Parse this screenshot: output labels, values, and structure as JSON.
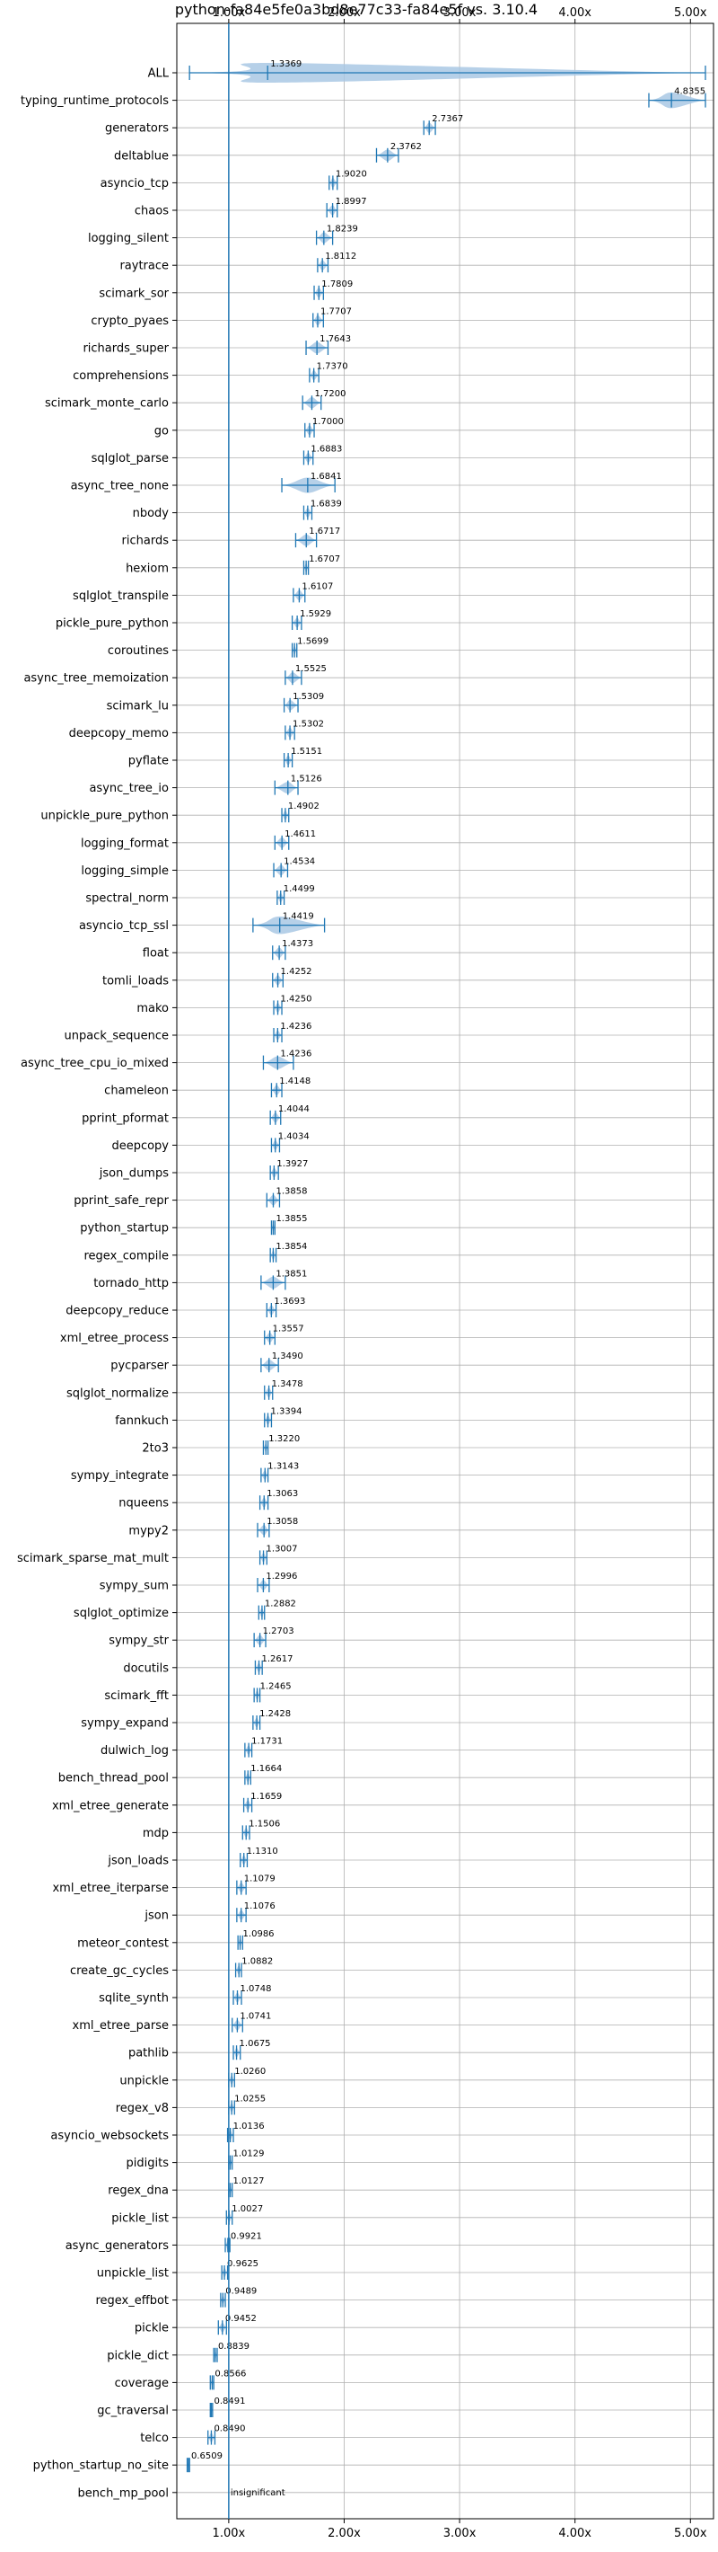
{
  "chart_data": {
    "type": "violin",
    "title": "python-fa84e5fe0a3bd8e77c33-fa84e5f vs. 3.10.4",
    "xlabel": "",
    "ylabel": "",
    "xlim": [
      0.55,
      5.2
    ],
    "x_ticks": [
      1.0,
      2.0,
      3.0,
      4.0,
      5.0
    ],
    "x_tick_labels": [
      "1.00x",
      "2.00x",
      "3.00x",
      "4.00x",
      "5.00x"
    ],
    "ticks_top_and_bottom": true,
    "grid": true,
    "reference_line": 1.0,
    "colors": {
      "violin": "#a9c8e4",
      "marker": "#1f77b4",
      "axis": "#000000",
      "grid": "#b0b0b0"
    },
    "benchmarks": [
      {
        "name": "ALL",
        "value": 1.3369,
        "label": "1.3369",
        "low": 0.66,
        "high": 5.13
      },
      {
        "name": "typing_runtime_protocols",
        "value": 4.8355,
        "label": "4.8355",
        "low": 4.64,
        "high": 5.13
      },
      {
        "name": "generators",
        "value": 2.7367,
        "label": "2.7367",
        "low": 2.69,
        "high": 2.79
      },
      {
        "name": "deltablue",
        "value": 2.3762,
        "label": "2.3762",
        "low": 2.28,
        "high": 2.47
      },
      {
        "name": "asyncio_tcp",
        "value": 1.902,
        "label": "1.9020",
        "low": 1.87,
        "high": 1.94
      },
      {
        "name": "chaos",
        "value": 1.8997,
        "label": "1.8997",
        "low": 1.85,
        "high": 1.94
      },
      {
        "name": "logging_silent",
        "value": 1.8239,
        "label": "1.8239",
        "low": 1.76,
        "high": 1.9
      },
      {
        "name": "raytrace",
        "value": 1.8112,
        "label": "1.8112",
        "low": 1.77,
        "high": 1.86
      },
      {
        "name": "scimark_sor",
        "value": 1.7809,
        "label": "1.7809",
        "low": 1.74,
        "high": 1.82
      },
      {
        "name": "crypto_pyaes",
        "value": 1.7707,
        "label": "1.7707",
        "low": 1.73,
        "high": 1.82
      },
      {
        "name": "richards_super",
        "value": 1.7643,
        "label": "1.7643",
        "low": 1.67,
        "high": 1.86
      },
      {
        "name": "comprehensions",
        "value": 1.737,
        "label": "1.7370",
        "low": 1.7,
        "high": 1.78
      },
      {
        "name": "scimark_monte_carlo",
        "value": 1.72,
        "label": "1.7200",
        "low": 1.64,
        "high": 1.8
      },
      {
        "name": "go",
        "value": 1.7,
        "label": "1.7000",
        "low": 1.66,
        "high": 1.74
      },
      {
        "name": "sqlglot_parse",
        "value": 1.6883,
        "label": "1.6883",
        "low": 1.65,
        "high": 1.73
      },
      {
        "name": "async_tree_none",
        "value": 1.6841,
        "label": "1.6841",
        "low": 1.46,
        "high": 1.92
      },
      {
        "name": "nbody",
        "value": 1.6839,
        "label": "1.6839",
        "low": 1.65,
        "high": 1.72
      },
      {
        "name": "richards",
        "value": 1.6717,
        "label": "1.6717",
        "low": 1.58,
        "high": 1.76
      },
      {
        "name": "hexiom",
        "value": 1.6707,
        "label": "1.6707",
        "low": 1.65,
        "high": 1.69
      },
      {
        "name": "sqlglot_transpile",
        "value": 1.6107,
        "label": "1.6107",
        "low": 1.56,
        "high": 1.66
      },
      {
        "name": "pickle_pure_python",
        "value": 1.5929,
        "label": "1.5929",
        "low": 1.55,
        "high": 1.63
      },
      {
        "name": "coroutines",
        "value": 1.5699,
        "label": "1.5699",
        "low": 1.55,
        "high": 1.59
      },
      {
        "name": "async_tree_memoization",
        "value": 1.5525,
        "label": "1.5525",
        "low": 1.49,
        "high": 1.63
      },
      {
        "name": "scimark_lu",
        "value": 1.5309,
        "label": "1.5309",
        "low": 1.48,
        "high": 1.6
      },
      {
        "name": "deepcopy_memo",
        "value": 1.5302,
        "label": "1.5302",
        "low": 1.49,
        "high": 1.57
      },
      {
        "name": "pyflate",
        "value": 1.5151,
        "label": "1.5151",
        "low": 1.48,
        "high": 1.55
      },
      {
        "name": "async_tree_io",
        "value": 1.5126,
        "label": "1.5126",
        "low": 1.4,
        "high": 1.6
      },
      {
        "name": "unpickle_pure_python",
        "value": 1.4902,
        "label": "1.4902",
        "low": 1.46,
        "high": 1.52
      },
      {
        "name": "logging_format",
        "value": 1.4611,
        "label": "1.4611",
        "low": 1.4,
        "high": 1.52
      },
      {
        "name": "logging_simple",
        "value": 1.4534,
        "label": "1.4534",
        "low": 1.39,
        "high": 1.51
      },
      {
        "name": "spectral_norm",
        "value": 1.4499,
        "label": "1.4499",
        "low": 1.42,
        "high": 1.48
      },
      {
        "name": "asyncio_tcp_ssl",
        "value": 1.4419,
        "label": "1.4419",
        "low": 1.21,
        "high": 1.83
      },
      {
        "name": "float",
        "value": 1.4373,
        "label": "1.4373",
        "low": 1.38,
        "high": 1.49
      },
      {
        "name": "tomli_loads",
        "value": 1.4252,
        "label": "1.4252",
        "low": 1.38,
        "high": 1.47
      },
      {
        "name": "mako",
        "value": 1.425,
        "label": "1.4250",
        "low": 1.39,
        "high": 1.46
      },
      {
        "name": "unpack_sequence",
        "value": 1.4236,
        "label": "1.4236",
        "low": 1.39,
        "high": 1.46
      },
      {
        "name": "async_tree_cpu_io_mixed",
        "value": 1.4236,
        "label": "1.4236",
        "low": 1.3,
        "high": 1.56
      },
      {
        "name": "chameleon",
        "value": 1.4148,
        "label": "1.4148",
        "low": 1.37,
        "high": 1.46
      },
      {
        "name": "pprint_pformat",
        "value": 1.4044,
        "label": "1.4044",
        "low": 1.36,
        "high": 1.45
      },
      {
        "name": "deepcopy",
        "value": 1.4034,
        "label": "1.4034",
        "low": 1.37,
        "high": 1.44
      },
      {
        "name": "json_dumps",
        "value": 1.3927,
        "label": "1.3927",
        "low": 1.36,
        "high": 1.43
      },
      {
        "name": "pprint_safe_repr",
        "value": 1.3858,
        "label": "1.3858",
        "low": 1.33,
        "high": 1.44
      },
      {
        "name": "python_startup",
        "value": 1.3855,
        "label": "1.3855",
        "low": 1.37,
        "high": 1.4
      },
      {
        "name": "regex_compile",
        "value": 1.3854,
        "label": "1.3854",
        "low": 1.36,
        "high": 1.41
      },
      {
        "name": "tornado_http",
        "value": 1.3851,
        "label": "1.3851",
        "low": 1.28,
        "high": 1.49
      },
      {
        "name": "deepcopy_reduce",
        "value": 1.3693,
        "label": "1.3693",
        "low": 1.33,
        "high": 1.41
      },
      {
        "name": "xml_etree_process",
        "value": 1.3557,
        "label": "1.3557",
        "low": 1.31,
        "high": 1.4
      },
      {
        "name": "pycparser",
        "value": 1.349,
        "label": "1.3490",
        "low": 1.28,
        "high": 1.43
      },
      {
        "name": "sqlglot_normalize",
        "value": 1.3478,
        "label": "1.3478",
        "low": 1.31,
        "high": 1.38
      },
      {
        "name": "fannkuch",
        "value": 1.3394,
        "label": "1.3394",
        "low": 1.31,
        "high": 1.37
      },
      {
        "name": "2to3",
        "value": 1.322,
        "label": "1.3220",
        "low": 1.3,
        "high": 1.34
      },
      {
        "name": "sympy_integrate",
        "value": 1.3143,
        "label": "1.3143",
        "low": 1.28,
        "high": 1.34
      },
      {
        "name": "nqueens",
        "value": 1.3063,
        "label": "1.3063",
        "low": 1.27,
        "high": 1.34
      },
      {
        "name": "mypy2",
        "value": 1.3058,
        "label": "1.3058",
        "low": 1.25,
        "high": 1.35
      },
      {
        "name": "scimark_sparse_mat_mult",
        "value": 1.3007,
        "label": "1.3007",
        "low": 1.27,
        "high": 1.33
      },
      {
        "name": "sympy_sum",
        "value": 1.2996,
        "label": "1.2996",
        "low": 1.25,
        "high": 1.35
      },
      {
        "name": "sqlglot_optimize",
        "value": 1.2882,
        "label": "1.2882",
        "low": 1.26,
        "high": 1.31
      },
      {
        "name": "sympy_str",
        "value": 1.2703,
        "label": "1.2703",
        "low": 1.22,
        "high": 1.32
      },
      {
        "name": "docutils",
        "value": 1.2617,
        "label": "1.2617",
        "low": 1.23,
        "high": 1.29
      },
      {
        "name": "scimark_fft",
        "value": 1.2465,
        "label": "1.2465",
        "low": 1.22,
        "high": 1.27
      },
      {
        "name": "sympy_expand",
        "value": 1.2428,
        "label": "1.2428",
        "low": 1.21,
        "high": 1.27
      },
      {
        "name": "dulwich_log",
        "value": 1.1731,
        "label": "1.1731",
        "low": 1.14,
        "high": 1.2
      },
      {
        "name": "bench_thread_pool",
        "value": 1.1664,
        "label": "1.1664",
        "low": 1.14,
        "high": 1.19
      },
      {
        "name": "xml_etree_generate",
        "value": 1.1659,
        "label": "1.1659",
        "low": 1.13,
        "high": 1.2
      },
      {
        "name": "mdp",
        "value": 1.1506,
        "label": "1.1506",
        "low": 1.12,
        "high": 1.18
      },
      {
        "name": "json_loads",
        "value": 1.131,
        "label": "1.1310",
        "low": 1.1,
        "high": 1.16
      },
      {
        "name": "xml_etree_iterparse",
        "value": 1.1079,
        "label": "1.1079",
        "low": 1.07,
        "high": 1.15
      },
      {
        "name": "json",
        "value": 1.1076,
        "label": "1.1076",
        "low": 1.07,
        "high": 1.15
      },
      {
        "name": "meteor_contest",
        "value": 1.0986,
        "label": "1.0986",
        "low": 1.08,
        "high": 1.12
      },
      {
        "name": "create_gc_cycles",
        "value": 1.0882,
        "label": "1.0882",
        "low": 1.06,
        "high": 1.11
      },
      {
        "name": "sqlite_synth",
        "value": 1.0748,
        "label": "1.0748",
        "low": 1.04,
        "high": 1.11
      },
      {
        "name": "xml_etree_parse",
        "value": 1.0741,
        "label": "1.0741",
        "low": 1.03,
        "high": 1.12
      },
      {
        "name": "pathlib",
        "value": 1.0675,
        "label": "1.0675",
        "low": 1.04,
        "high": 1.1
      },
      {
        "name": "unpickle",
        "value": 1.026,
        "label": "1.0260",
        "low": 1.0,
        "high": 1.05
      },
      {
        "name": "regex_v8",
        "value": 1.0255,
        "label": "1.0255",
        "low": 1.0,
        "high": 1.05
      },
      {
        "name": "asyncio_websockets",
        "value": 1.0136,
        "label": "1.0136",
        "low": 0.99,
        "high": 1.04
      },
      {
        "name": "pidigits",
        "value": 1.0129,
        "label": "1.0129",
        "low": 1.0,
        "high": 1.03
      },
      {
        "name": "regex_dna",
        "value": 1.0127,
        "label": "1.0127",
        "low": 1.0,
        "high": 1.03
      },
      {
        "name": "pickle_list",
        "value": 1.0027,
        "label": "1.0027",
        "low": 0.98,
        "high": 1.03
      },
      {
        "name": "async_generators",
        "value": 0.9921,
        "label": "0.9921",
        "low": 0.97,
        "high": 1.01
      },
      {
        "name": "unpickle_list",
        "value": 0.9625,
        "label": "0.9625",
        "low": 0.94,
        "high": 0.99
      },
      {
        "name": "regex_effbot",
        "value": 0.9489,
        "label": "0.9489",
        "low": 0.93,
        "high": 0.97
      },
      {
        "name": "pickle",
        "value": 0.9452,
        "label": "0.9452",
        "low": 0.91,
        "high": 0.98
      },
      {
        "name": "pickle_dict",
        "value": 0.8839,
        "label": "0.8839",
        "low": 0.87,
        "high": 0.9
      },
      {
        "name": "coverage",
        "value": 0.8566,
        "label": "0.8566",
        "low": 0.84,
        "high": 0.87
      },
      {
        "name": "gc_traversal",
        "value": 0.8491,
        "label": "0.8491",
        "low": 0.84,
        "high": 0.86
      },
      {
        "name": "telco",
        "value": 0.849,
        "label": "0.8490",
        "low": 0.82,
        "high": 0.88
      },
      {
        "name": "python_startup_no_site",
        "value": 0.6509,
        "label": "0.6509",
        "low": 0.64,
        "high": 0.66
      },
      {
        "name": "bench_mp_pool",
        "value": null,
        "label": "insignificant",
        "low": null,
        "high": null
      }
    ]
  }
}
